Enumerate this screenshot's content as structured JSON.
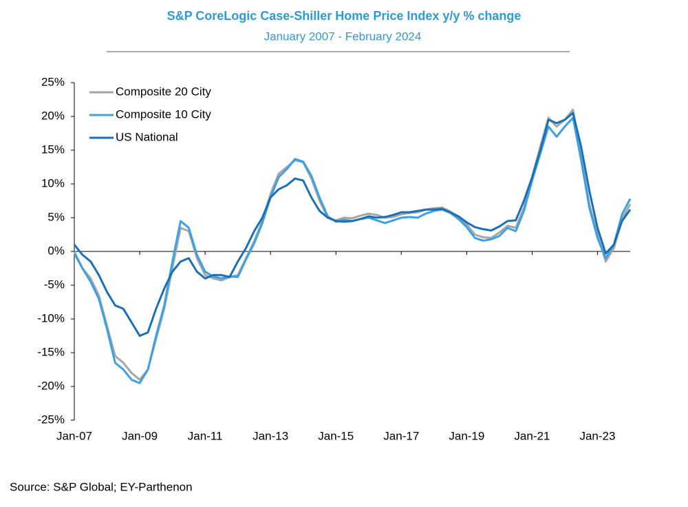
{
  "chart_data": {
    "type": "line",
    "title": "S&P CoreLogic Case-Shiller Home Price Index y/y %  change",
    "subtitle": "January 2007 - February 2024",
    "source": "Source: S&P Global; EY-Parthenon",
    "legend": "upper left",
    "categories": [
      "Jan-07",
      null,
      null,
      null,
      null,
      null,
      null,
      null,
      "Jan-09",
      null,
      null,
      null,
      null,
      null,
      null,
      null,
      "Jan-11",
      null,
      null,
      null,
      null,
      null,
      null,
      null,
      "Jan-13",
      null,
      null,
      null,
      null,
      null,
      null,
      null,
      "Jan-15",
      null,
      null,
      null,
      null,
      null,
      null,
      null,
      "Jan-17",
      null,
      null,
      null,
      null,
      null,
      null,
      null,
      "Jan-19",
      null,
      null,
      null,
      null,
      null,
      null,
      null,
      "Jan-21",
      null,
      null,
      null,
      null,
      null,
      null,
      null,
      "Jan-23",
      null,
      null,
      null,
      null
    ],
    "series": [
      {
        "name": "Composite 20 City",
        "color": "#a6a6a6",
        "values": [
          0,
          -2.5,
          -4,
          -6.5,
          -11,
          -15.5,
          -16.5,
          -18,
          -19,
          -17.5,
          -13,
          -8.5,
          -2.5,
          3.5,
          3,
          -1,
          -3.5,
          -4,
          -4.3,
          -3.8,
          -3.5,
          -1,
          1.5,
          4.5,
          8.5,
          11.5,
          12.5,
          13.5,
          13.2,
          10.8,
          7.5,
          5,
          4.6,
          5,
          4.9,
          5.3,
          5.6,
          5.4,
          5,
          5.1,
          5.5,
          5.7,
          5.8,
          6.2,
          6.4,
          6.5,
          5.9,
          5,
          4,
          2.5,
          2.1,
          2,
          2.8,
          3.8,
          3.5,
          6.5,
          11,
          15.5,
          19.8,
          18.5,
          19.5,
          21,
          14,
          7,
          2.5,
          -1.5,
          0.5,
          4.8,
          7
        ]
      },
      {
        "name": "Composite 10 City",
        "color": "#3ea0e0",
        "values": [
          -0.3,
          -2.5,
          -4.5,
          -7,
          -11.5,
          -16.5,
          -17.5,
          -19,
          -19.5,
          -17.5,
          -12.5,
          -8,
          -1.5,
          4.5,
          3.5,
          -0.5,
          -3,
          -3.7,
          -4,
          -3.7,
          -3.8,
          -1.2,
          1.2,
          4.2,
          8,
          11,
          12.2,
          13.7,
          13.3,
          11.2,
          8,
          5.2,
          4.4,
          4.7,
          4.5,
          4.8,
          5,
          4.6,
          4.2,
          4.6,
          5,
          5.1,
          5,
          5.6,
          6,
          6.2,
          5.7,
          4.8,
          3.6,
          2,
          1.6,
          1.8,
          2.3,
          3.5,
          3,
          6,
          10.5,
          14.5,
          18.5,
          17,
          18.5,
          19.8,
          13.5,
          6.5,
          2,
          -1,
          1,
          5.5,
          7.8
        ]
      },
      {
        "name": "US National",
        "color": "#1a6fb5",
        "values": [
          1,
          -0.5,
          -1.5,
          -3.5,
          -6,
          -8,
          -8.5,
          -10.5,
          -12.5,
          -12,
          -8.5,
          -5.5,
          -3,
          -1.5,
          -1,
          -3,
          -4,
          -3.5,
          -3.5,
          -3.8,
          -1.5,
          0.5,
          3,
          5,
          8,
          9.2,
          9.8,
          10.8,
          10.5,
          8,
          6,
          5,
          4.5,
          4.4,
          4.5,
          4.8,
          5.2,
          5,
          5.1,
          5.4,
          5.8,
          5.8,
          6,
          6.2,
          6.2,
          6.3,
          5.8,
          5.2,
          4.3,
          3.6,
          3.3,
          3.1,
          3.7,
          4.5,
          4.6,
          7.5,
          11,
          15,
          19.5,
          19,
          19.5,
          20.5,
          15.5,
          9,
          3.5,
          -0.3,
          1,
          4.5,
          6.2
        ]
      }
    ],
    "ylim": [
      -25,
      25
    ],
    "yticks": [
      {
        "value": -25,
        "label": "-25%"
      },
      {
        "value": -20,
        "label": "-20%"
      },
      {
        "value": -15,
        "label": "-15%"
      },
      {
        "value": -10,
        "label": "-10%"
      },
      {
        "value": -5,
        "label": "-5%"
      },
      {
        "value": 0,
        "label": "0%"
      },
      {
        "value": 5,
        "label": "5%"
      },
      {
        "value": 10,
        "label": "10%"
      },
      {
        "value": 15,
        "label": "15%"
      },
      {
        "value": 20,
        "label": "20%"
      },
      {
        "value": 25,
        "label": "25%"
      }
    ]
  }
}
